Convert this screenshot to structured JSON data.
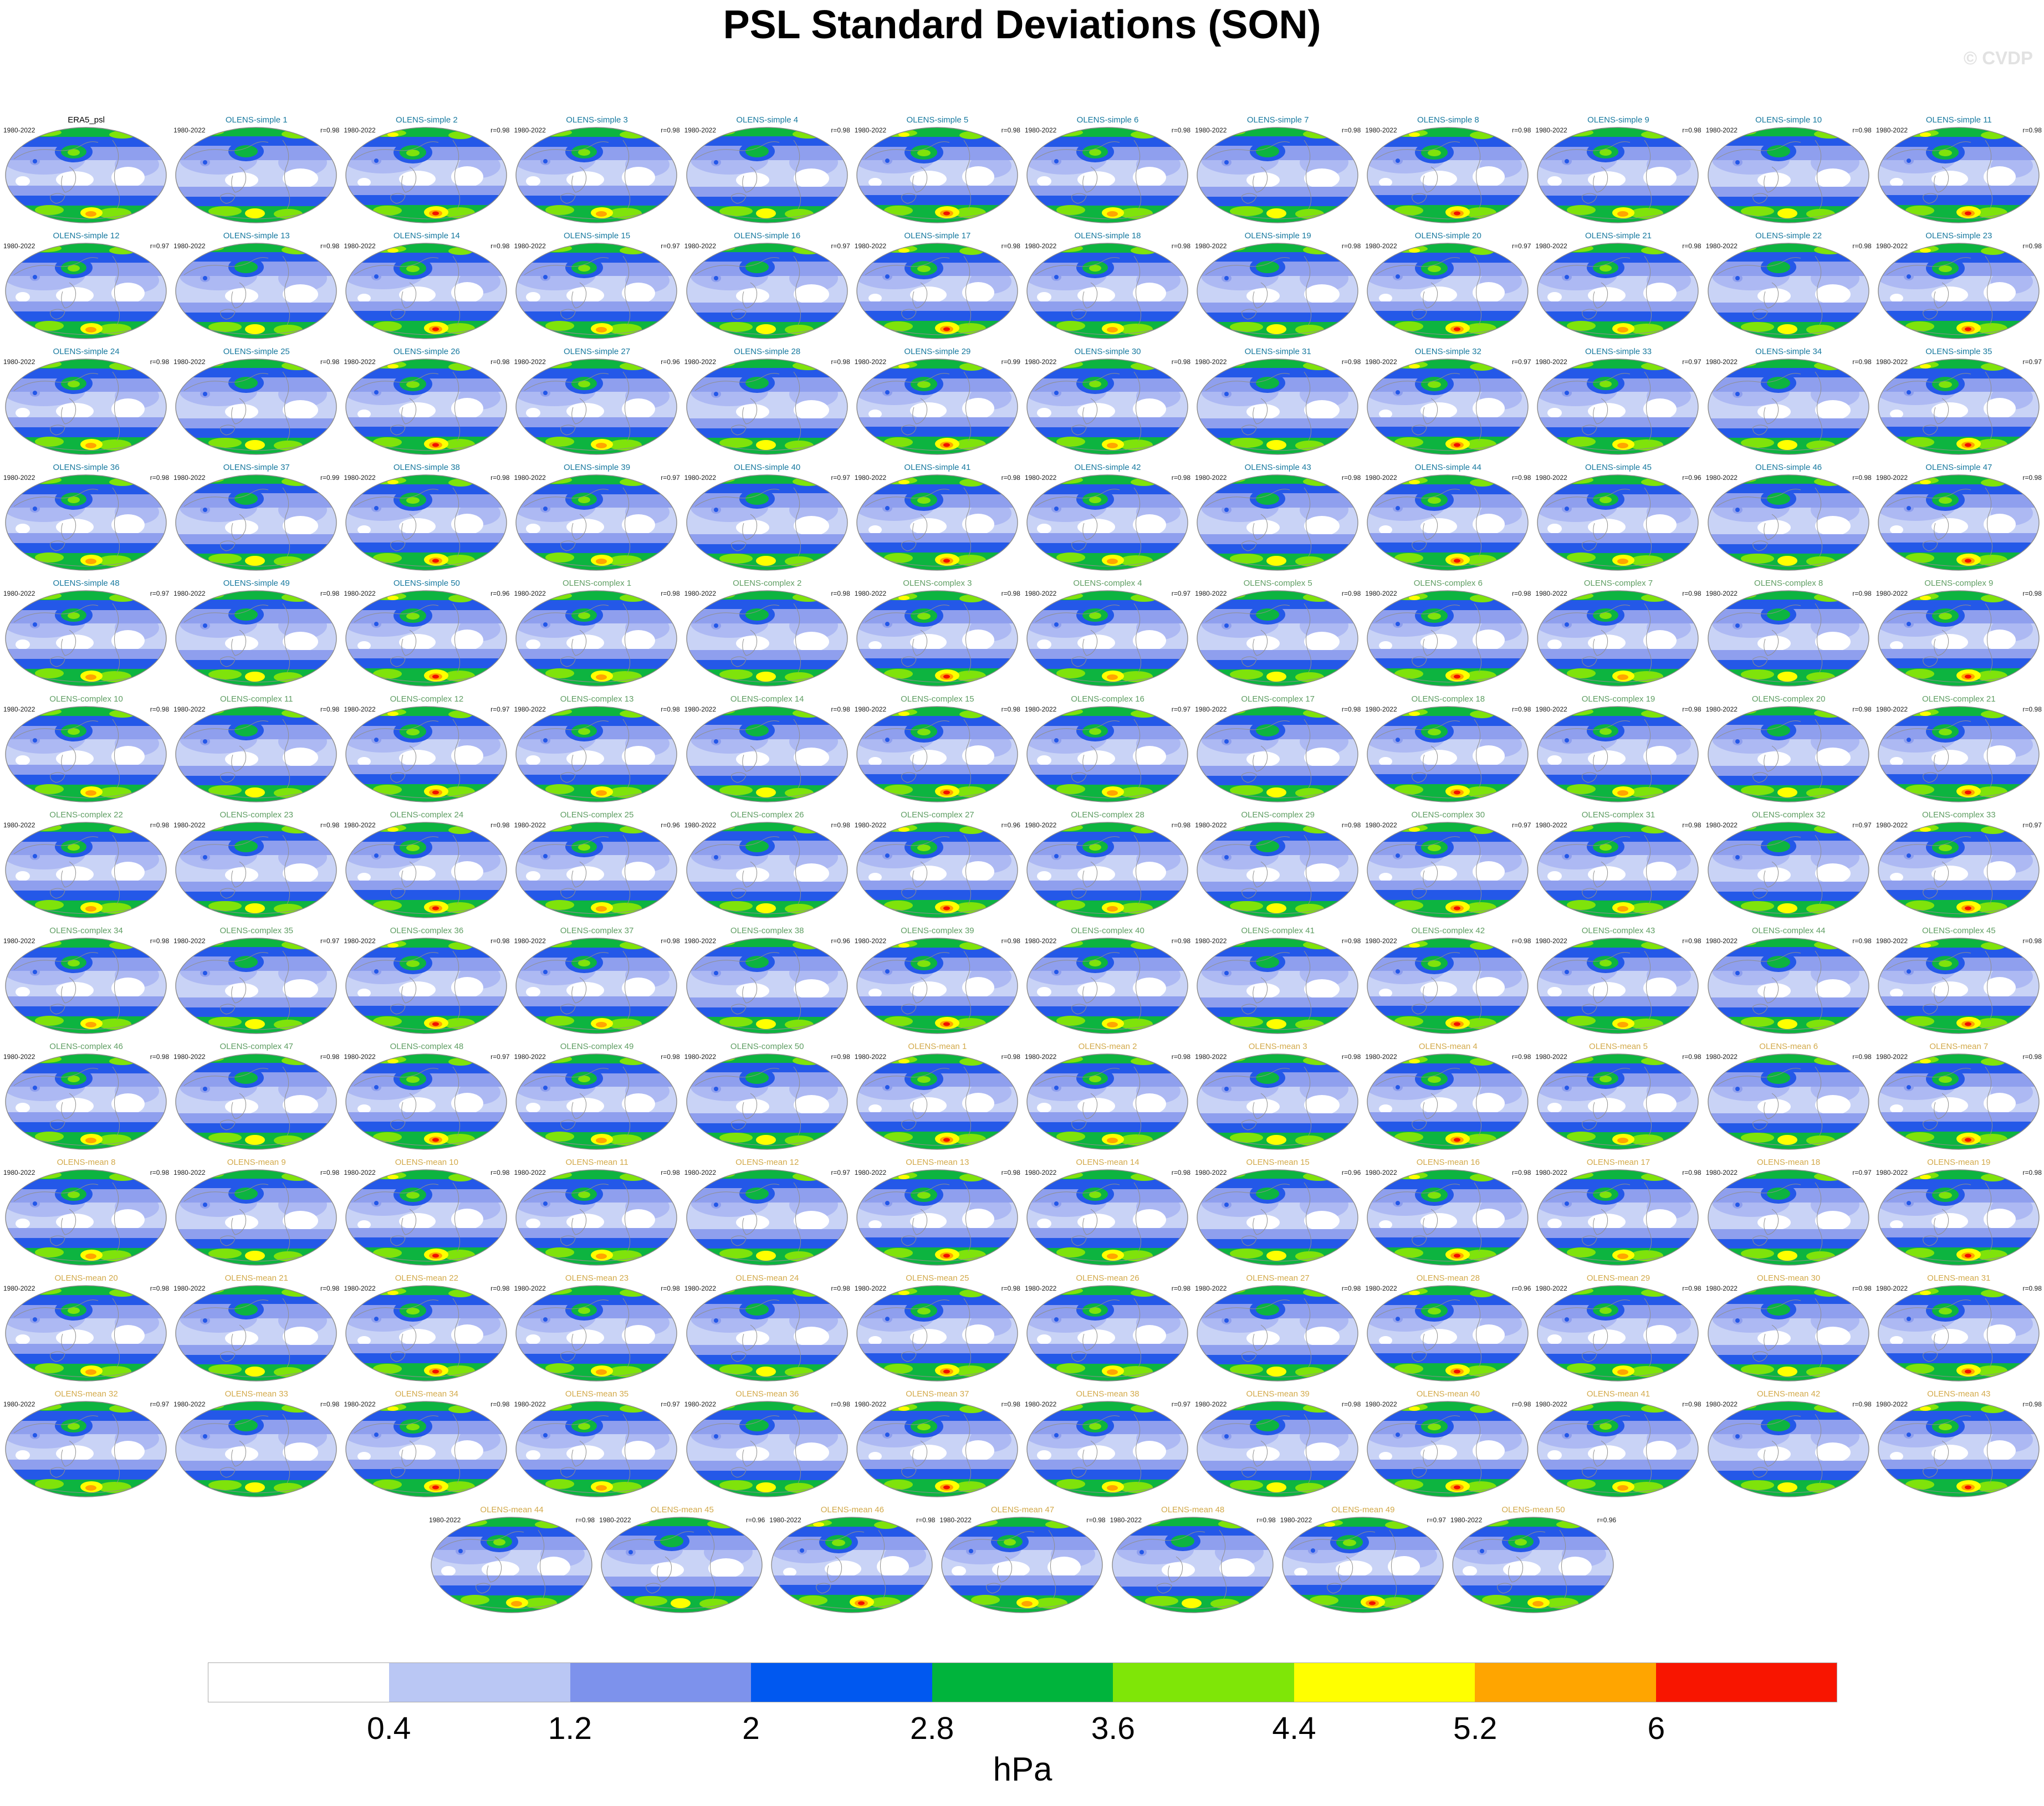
{
  "header": {
    "title": "PSL Standard Deviations (SON)",
    "watermark": "© CVDP"
  },
  "panel_defaults": {
    "period_label": "1980-2022"
  },
  "title_colors": {
    "era5": "#000000",
    "simple": "#17799f",
    "complex": "#5f9e63",
    "mean": "#d3aa4b"
  },
  "chart_data": {
    "type": "heatmap",
    "title": "PSL Standard Deviations (SON)",
    "units": "hPa",
    "projection": "global oval map, one per ensemble member",
    "contour_levels": [
      0.4,
      1.2,
      2,
      2.8,
      3.6,
      4.4,
      5.2,
      6
    ],
    "level_colors": [
      "#FFFFFF",
      "#BAC7F4",
      "#7D92EC",
      "#0058F0",
      "#00B43C",
      "#7FE607",
      "#FFFF00",
      "#FFA500",
      "#F81500"
    ],
    "grid": {
      "columns": 12,
      "full_rows": 12,
      "last_row_panels": 7
    },
    "panel_count": 151
  },
  "colorbar": {
    "label": "hPa",
    "tick_labels": [
      "0.4",
      "1.2",
      "2",
      "2.8",
      "3.6",
      "4.4",
      "5.2",
      "6"
    ],
    "colors": [
      "#FFFFFF",
      "#BAC7F4",
      "#7D92EC",
      "#0058F0",
      "#00B43C",
      "#7FE607",
      "#FFFF00",
      "#FFA500",
      "#F81500"
    ]
  },
  "panels": [
    {
      "t": "ERA5_psl",
      "r": "",
      "g": "era5"
    },
    {
      "t": "OLENS-simple 1",
      "r": "r=0.98",
      "g": "simple"
    },
    {
      "t": "OLENS-simple 2",
      "r": "r=0.98",
      "g": "simple"
    },
    {
      "t": "OLENS-simple 3",
      "r": "r=0.98",
      "g": "simple"
    },
    {
      "t": "OLENS-simple 4",
      "r": "r=0.98",
      "g": "simple"
    },
    {
      "t": "OLENS-simple 5",
      "r": "r=0.98",
      "g": "simple"
    },
    {
      "t": "OLENS-simple 6",
      "r": "r=0.98",
      "g": "simple"
    },
    {
      "t": "OLENS-simple 7",
      "r": "r=0.98",
      "g": "simple"
    },
    {
      "t": "OLENS-simple 8",
      "r": "r=0.98",
      "g": "simple"
    },
    {
      "t": "OLENS-simple 9",
      "r": "r=0.98",
      "g": "simple"
    },
    {
      "t": "OLENS-simple 10",
      "r": "r=0.98",
      "g": "simple"
    },
    {
      "t": "OLENS-simple 11",
      "r": "r=0.98",
      "g": "simple"
    },
    {
      "t": "OLENS-simple 12",
      "r": "r=0.97",
      "g": "simple"
    },
    {
      "t": "OLENS-simple 13",
      "r": "r=0.98",
      "g": "simple"
    },
    {
      "t": "OLENS-simple 14",
      "r": "r=0.98",
      "g": "simple"
    },
    {
      "t": "OLENS-simple 15",
      "r": "r=0.97",
      "g": "simple"
    },
    {
      "t": "OLENS-simple 16",
      "r": "r=0.97",
      "g": "simple"
    },
    {
      "t": "OLENS-simple 17",
      "r": "r=0.98",
      "g": "simple"
    },
    {
      "t": "OLENS-simple 18",
      "r": "r=0.98",
      "g": "simple"
    },
    {
      "t": "OLENS-simple 19",
      "r": "r=0.98",
      "g": "simple"
    },
    {
      "t": "OLENS-simple 20",
      "r": "r=0.97",
      "g": "simple"
    },
    {
      "t": "OLENS-simple 21",
      "r": "r=0.98",
      "g": "simple"
    },
    {
      "t": "OLENS-simple 22",
      "r": "r=0.98",
      "g": "simple"
    },
    {
      "t": "OLENS-simple 23",
      "r": "r=0.98",
      "g": "simple"
    },
    {
      "t": "OLENS-simple 24",
      "r": "r=0.98",
      "g": "simple"
    },
    {
      "t": "OLENS-simple 25",
      "r": "r=0.98",
      "g": "simple"
    },
    {
      "t": "OLENS-simple 26",
      "r": "r=0.98",
      "g": "simple"
    },
    {
      "t": "OLENS-simple 27",
      "r": "r=0.96",
      "g": "simple"
    },
    {
      "t": "OLENS-simple 28",
      "r": "r=0.98",
      "g": "simple"
    },
    {
      "t": "OLENS-simple 29",
      "r": "r=0.99",
      "g": "simple"
    },
    {
      "t": "OLENS-simple 30",
      "r": "r=0.98",
      "g": "simple"
    },
    {
      "t": "OLENS-simple 31",
      "r": "r=0.98",
      "g": "simple"
    },
    {
      "t": "OLENS-simple 32",
      "r": "r=0.97",
      "g": "simple"
    },
    {
      "t": "OLENS-simple 33",
      "r": "r=0.97",
      "g": "simple"
    },
    {
      "t": "OLENS-simple 34",
      "r": "r=0.98",
      "g": "simple"
    },
    {
      "t": "OLENS-simple 35",
      "r": "r=0.97",
      "g": "simple"
    },
    {
      "t": "OLENS-simple 36",
      "r": "r=0.98",
      "g": "simple"
    },
    {
      "t": "OLENS-simple 37",
      "r": "r=0.99",
      "g": "simple"
    },
    {
      "t": "OLENS-simple 38",
      "r": "r=0.98",
      "g": "simple"
    },
    {
      "t": "OLENS-simple 39",
      "r": "r=0.97",
      "g": "simple"
    },
    {
      "t": "OLENS-simple 40",
      "r": "r=0.97",
      "g": "simple"
    },
    {
      "t": "OLENS-simple 41",
      "r": "r=0.98",
      "g": "simple"
    },
    {
      "t": "OLENS-simple 42",
      "r": "r=0.98",
      "g": "simple"
    },
    {
      "t": "OLENS-simple 43",
      "r": "r=0.98",
      "g": "simple"
    },
    {
      "t": "OLENS-simple 44",
      "r": "r=0.98",
      "g": "simple"
    },
    {
      "t": "OLENS-simple 45",
      "r": "r=0.96",
      "g": "simple"
    },
    {
      "t": "OLENS-simple 46",
      "r": "r=0.98",
      "g": "simple"
    },
    {
      "t": "OLENS-simple 47",
      "r": "r=0.98",
      "g": "simple"
    },
    {
      "t": "OLENS-simple 48",
      "r": "r=0.97",
      "g": "simple"
    },
    {
      "t": "OLENS-simple 49",
      "r": "r=0.98",
      "g": "simple"
    },
    {
      "t": "OLENS-simple 50",
      "r": "r=0.96",
      "g": "simple"
    },
    {
      "t": "OLENS-complex 1",
      "r": "r=0.98",
      "g": "complex"
    },
    {
      "t": "OLENS-complex 2",
      "r": "r=0.98",
      "g": "complex"
    },
    {
      "t": "OLENS-complex 3",
      "r": "r=0.98",
      "g": "complex"
    },
    {
      "t": "OLENS-complex 4",
      "r": "r=0.97",
      "g": "complex"
    },
    {
      "t": "OLENS-complex 5",
      "r": "r=0.98",
      "g": "complex"
    },
    {
      "t": "OLENS-complex 6",
      "r": "r=0.98",
      "g": "complex"
    },
    {
      "t": "OLENS-complex 7",
      "r": "r=0.98",
      "g": "complex"
    },
    {
      "t": "OLENS-complex 8",
      "r": "r=0.98",
      "g": "complex"
    },
    {
      "t": "OLENS-complex 9",
      "r": "r=0.98",
      "g": "complex"
    },
    {
      "t": "OLENS-complex 10",
      "r": "r=0.98",
      "g": "complex"
    },
    {
      "t": "OLENS-complex 11",
      "r": "r=0.98",
      "g": "complex"
    },
    {
      "t": "OLENS-complex 12",
      "r": "r=0.97",
      "g": "complex"
    },
    {
      "t": "OLENS-complex 13",
      "r": "r=0.98",
      "g": "complex"
    },
    {
      "t": "OLENS-complex 14",
      "r": "r=0.98",
      "g": "complex"
    },
    {
      "t": "OLENS-complex 15",
      "r": "r=0.98",
      "g": "complex"
    },
    {
      "t": "OLENS-complex 16",
      "r": "r=0.97",
      "g": "complex"
    },
    {
      "t": "OLENS-complex 17",
      "r": "r=0.98",
      "g": "complex"
    },
    {
      "t": "OLENS-complex 18",
      "r": "r=0.98",
      "g": "complex"
    },
    {
      "t": "OLENS-complex 19",
      "r": "r=0.98",
      "g": "complex"
    },
    {
      "t": "OLENS-complex 20",
      "r": "r=0.98",
      "g": "complex"
    },
    {
      "t": "OLENS-complex 21",
      "r": "r=0.98",
      "g": "complex"
    },
    {
      "t": "OLENS-complex 22",
      "r": "r=0.98",
      "g": "complex"
    },
    {
      "t": "OLENS-complex 23",
      "r": "r=0.98",
      "g": "complex"
    },
    {
      "t": "OLENS-complex 24",
      "r": "r=0.98",
      "g": "complex"
    },
    {
      "t": "OLENS-complex 25",
      "r": "r=0.96",
      "g": "complex"
    },
    {
      "t": "OLENS-complex 26",
      "r": "r=0.98",
      "g": "complex"
    },
    {
      "t": "OLENS-complex 27",
      "r": "r=0.96",
      "g": "complex"
    },
    {
      "t": "OLENS-complex 28",
      "r": "r=0.98",
      "g": "complex"
    },
    {
      "t": "OLENS-complex 29",
      "r": "r=0.98",
      "g": "complex"
    },
    {
      "t": "OLENS-complex 30",
      "r": "r=0.97",
      "g": "complex"
    },
    {
      "t": "OLENS-complex 31",
      "r": "r=0.98",
      "g": "complex"
    },
    {
      "t": "OLENS-complex 32",
      "r": "r=0.97",
      "g": "complex"
    },
    {
      "t": "OLENS-complex 33",
      "r": "r=0.97",
      "g": "complex"
    },
    {
      "t": "OLENS-complex 34",
      "r": "r=0.98",
      "g": "complex"
    },
    {
      "t": "OLENS-complex 35",
      "r": "r=0.97",
      "g": "complex"
    },
    {
      "t": "OLENS-complex 36",
      "r": "r=0.98",
      "g": "complex"
    },
    {
      "t": "OLENS-complex 37",
      "r": "r=0.98",
      "g": "complex"
    },
    {
      "t": "OLENS-complex 38",
      "r": "r=0.96",
      "g": "complex"
    },
    {
      "t": "OLENS-complex 39",
      "r": "r=0.98",
      "g": "complex"
    },
    {
      "t": "OLENS-complex 40",
      "r": "r=0.98",
      "g": "complex"
    },
    {
      "t": "OLENS-complex 41",
      "r": "r=0.98",
      "g": "complex"
    },
    {
      "t": "OLENS-complex 42",
      "r": "r=0.98",
      "g": "complex"
    },
    {
      "t": "OLENS-complex 43",
      "r": "r=0.98",
      "g": "complex"
    },
    {
      "t": "OLENS-complex 44",
      "r": "r=0.98",
      "g": "complex"
    },
    {
      "t": "OLENS-complex 45",
      "r": "r=0.98",
      "g": "complex"
    },
    {
      "t": "OLENS-complex 46",
      "r": "r=0.98",
      "g": "complex"
    },
    {
      "t": "OLENS-complex 47",
      "r": "r=0.98",
      "g": "complex"
    },
    {
      "t": "OLENS-complex 48",
      "r": "r=0.97",
      "g": "complex"
    },
    {
      "t": "OLENS-complex 49",
      "r": "r=0.98",
      "g": "complex"
    },
    {
      "t": "OLENS-complex 50",
      "r": "r=0.98",
      "g": "complex"
    },
    {
      "t": "OLENS-mean 1",
      "r": "r=0.98",
      "g": "mean"
    },
    {
      "t": "OLENS-mean 2",
      "r": "r=0.98",
      "g": "mean"
    },
    {
      "t": "OLENS-mean 3",
      "r": "r=0.98",
      "g": "mean"
    },
    {
      "t": "OLENS-mean 4",
      "r": "r=0.98",
      "g": "mean"
    },
    {
      "t": "OLENS-mean 5",
      "r": "r=0.98",
      "g": "mean"
    },
    {
      "t": "OLENS-mean 6",
      "r": "r=0.98",
      "g": "mean"
    },
    {
      "t": "OLENS-mean 7",
      "r": "r=0.98",
      "g": "mean"
    },
    {
      "t": "OLENS-mean 8",
      "r": "r=0.98",
      "g": "mean"
    },
    {
      "t": "OLENS-mean 9",
      "r": "r=0.98",
      "g": "mean"
    },
    {
      "t": "OLENS-mean 10",
      "r": "r=0.98",
      "g": "mean"
    },
    {
      "t": "OLENS-mean 11",
      "r": "r=0.98",
      "g": "mean"
    },
    {
      "t": "OLENS-mean 12",
      "r": "r=0.97",
      "g": "mean"
    },
    {
      "t": "OLENS-mean 13",
      "r": "r=0.98",
      "g": "mean"
    },
    {
      "t": "OLENS-mean 14",
      "r": "r=0.98",
      "g": "mean"
    },
    {
      "t": "OLENS-mean 15",
      "r": "r=0.96",
      "g": "mean"
    },
    {
      "t": "OLENS-mean 16",
      "r": "r=0.98",
      "g": "mean"
    },
    {
      "t": "OLENS-mean 17",
      "r": "r=0.98",
      "g": "mean"
    },
    {
      "t": "OLENS-mean 18",
      "r": "r=0.97",
      "g": "mean"
    },
    {
      "t": "OLENS-mean 19",
      "r": "r=0.98",
      "g": "mean"
    },
    {
      "t": "OLENS-mean 20",
      "r": "r=0.98",
      "g": "mean"
    },
    {
      "t": "OLENS-mean 21",
      "r": "r=0.98",
      "g": "mean"
    },
    {
      "t": "OLENS-mean 22",
      "r": "r=0.98",
      "g": "mean"
    },
    {
      "t": "OLENS-mean 23",
      "r": "r=0.98",
      "g": "mean"
    },
    {
      "t": "OLENS-mean 24",
      "r": "r=0.98",
      "g": "mean"
    },
    {
      "t": "OLENS-mean 25",
      "r": "r=0.98",
      "g": "mean"
    },
    {
      "t": "OLENS-mean 26",
      "r": "r=0.98",
      "g": "mean"
    },
    {
      "t": "OLENS-mean 27",
      "r": "r=0.98",
      "g": "mean"
    },
    {
      "t": "OLENS-mean 28",
      "r": "r=0.96",
      "g": "mean"
    },
    {
      "t": "OLENS-mean 29",
      "r": "r=0.98",
      "g": "mean"
    },
    {
      "t": "OLENS-mean 30",
      "r": "r=0.98",
      "g": "mean"
    },
    {
      "t": "OLENS-mean 31",
      "r": "r=0.98",
      "g": "mean"
    },
    {
      "t": "OLENS-mean 32",
      "r": "r=0.97",
      "g": "mean"
    },
    {
      "t": "OLENS-mean 33",
      "r": "r=0.98",
      "g": "mean"
    },
    {
      "t": "OLENS-mean 34",
      "r": "r=0.98",
      "g": "mean"
    },
    {
      "t": "OLENS-mean 35",
      "r": "r=0.97",
      "g": "mean"
    },
    {
      "t": "OLENS-mean 36",
      "r": "r=0.98",
      "g": "mean"
    },
    {
      "t": "OLENS-mean 37",
      "r": "r=0.98",
      "g": "mean"
    },
    {
      "t": "OLENS-mean 38",
      "r": "r=0.97",
      "g": "mean"
    },
    {
      "t": "OLENS-mean 39",
      "r": "r=0.98",
      "g": "mean"
    },
    {
      "t": "OLENS-mean 40",
      "r": "r=0.98",
      "g": "mean"
    },
    {
      "t": "OLENS-mean 41",
      "r": "r=0.98",
      "g": "mean"
    },
    {
      "t": "OLENS-mean 42",
      "r": "r=0.98",
      "g": "mean"
    },
    {
      "t": "OLENS-mean 43",
      "r": "r=0.98",
      "g": "mean"
    },
    {
      "t": "OLENS-mean 44",
      "r": "r=0.98",
      "g": "mean"
    },
    {
      "t": "OLENS-mean 45",
      "r": "r=0.96",
      "g": "mean"
    },
    {
      "t": "OLENS-mean 46",
      "r": "r=0.98",
      "g": "mean"
    },
    {
      "t": "OLENS-mean 47",
      "r": "r=0.98",
      "g": "mean"
    },
    {
      "t": "OLENS-mean 48",
      "r": "r=0.98",
      "g": "mean"
    },
    {
      "t": "OLENS-mean 49",
      "r": "r=0.97",
      "g": "mean"
    },
    {
      "t": "OLENS-mean 50",
      "r": "r=0.96",
      "g": "mean"
    }
  ]
}
